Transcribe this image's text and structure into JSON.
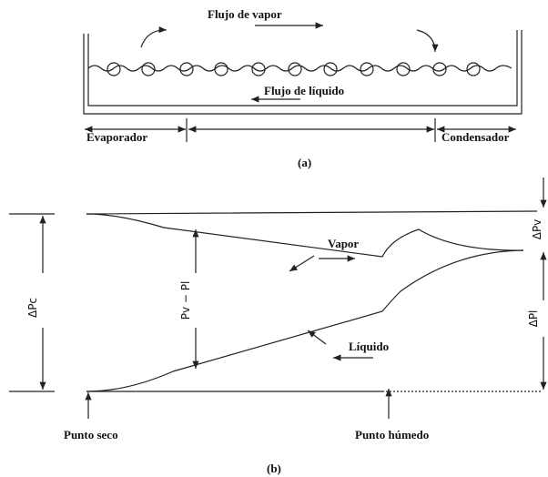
{
  "part_a": {
    "vapor_flow": "Flujo de vapor",
    "liquid_flow": "Flujo de líquido",
    "evaporator": "Evaporador",
    "condenser": "Condensador",
    "caption": "(a)"
  },
  "part_b": {
    "vapor": "Vapor",
    "liquid": "Líquido",
    "dry_point": "Punto seco",
    "wet_point": "Punto húmedo",
    "delta_pc": "ΔPc",
    "pv_minus_pl": "Pv − Pl",
    "delta_pv": "ΔPv",
    "delta_pl": "ΔPl",
    "caption": "(b)"
  }
}
